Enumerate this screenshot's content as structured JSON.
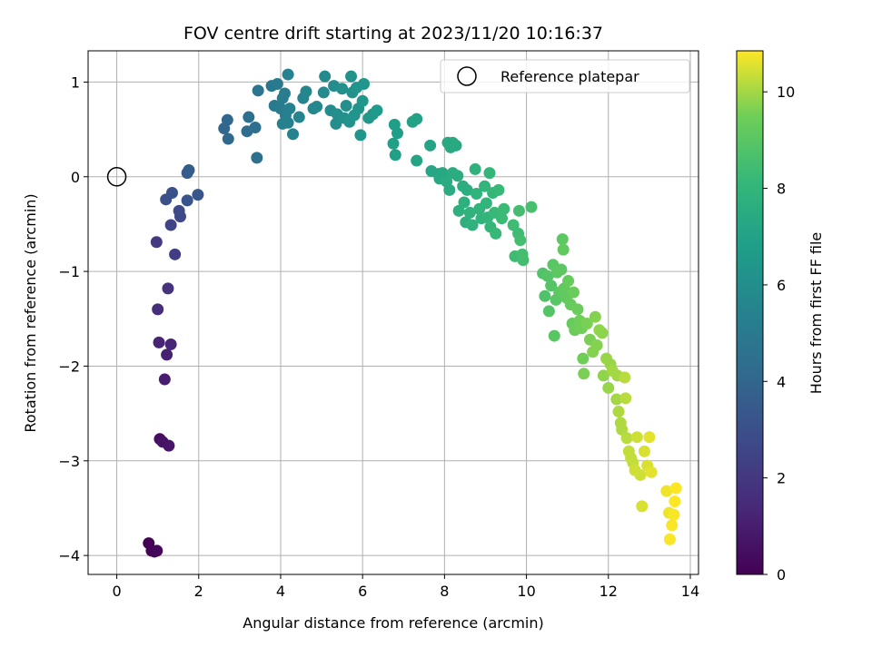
{
  "chart_data": {
    "type": "scatter",
    "title": "FOV centre drift starting at 2023/11/20 10:16:37",
    "xlabel": "Angular distance from reference (arcmin)",
    "ylabel": "Rotation from reference (arcmin)",
    "xlim": [
      -0.7,
      14.2
    ],
    "ylim": [
      -4.2,
      1.33
    ],
    "xticks": [
      0,
      2,
      4,
      6,
      8,
      10,
      12,
      14
    ],
    "yticks": [
      -4,
      -3,
      -2,
      -1,
      0,
      1
    ],
    "xtick_labels": [
      "0",
      "2",
      "4",
      "6",
      "8",
      "10",
      "12",
      "14"
    ],
    "ytick_labels": [
      "−4",
      "−3",
      "−2",
      "−1",
      "0",
      "1"
    ],
    "grid": true,
    "legend": {
      "position": "top-right",
      "entries": [
        "Reference platepar"
      ]
    },
    "reference_point": {
      "x": 0,
      "y": 0,
      "marker": "open-circle"
    },
    "colorbar": {
      "label": "Hours from first FF file",
      "range": [
        0,
        10.85
      ],
      "ticks": [
        0,
        2,
        4,
        6,
        8,
        10
      ],
      "tick_labels": [
        "0",
        "2",
        "4",
        "6",
        "8",
        "10"
      ],
      "colormap": "viridis"
    },
    "points": [
      {
        "x": 0.78,
        "y": -3.87,
        "t": 0.05
      },
      {
        "x": 0.85,
        "y": -3.95,
        "t": 0.1
      },
      {
        "x": 0.92,
        "y": -3.96,
        "t": 0.15
      },
      {
        "x": 0.98,
        "y": -3.95,
        "t": 0.2
      },
      {
        "x": 1.05,
        "y": -2.77,
        "t": 0.5
      },
      {
        "x": 1.12,
        "y": -2.8,
        "t": 0.6
      },
      {
        "x": 1.27,
        "y": -2.84,
        "t": 0.7
      },
      {
        "x": 1.17,
        "y": -2.14,
        "t": 1.0
      },
      {
        "x": 1.22,
        "y": -1.88,
        "t": 1.1
      },
      {
        "x": 1.03,
        "y": -1.75,
        "t": 1.2
      },
      {
        "x": 1.32,
        "y": -1.77,
        "t": 1.3
      },
      {
        "x": 1.0,
        "y": -1.4,
        "t": 1.6
      },
      {
        "x": 1.25,
        "y": -1.18,
        "t": 1.8
      },
      {
        "x": 0.97,
        "y": -0.69,
        "t": 2.1
      },
      {
        "x": 1.42,
        "y": -0.82,
        "t": 2.2
      },
      {
        "x": 1.32,
        "y": -0.51,
        "t": 2.5
      },
      {
        "x": 1.55,
        "y": -0.42,
        "t": 2.7
      },
      {
        "x": 1.52,
        "y": -0.36,
        "t": 2.8
      },
      {
        "x": 1.2,
        "y": -0.24,
        "t": 3.0
      },
      {
        "x": 1.35,
        "y": -0.17,
        "t": 3.1
      },
      {
        "x": 1.72,
        "y": -0.25,
        "t": 3.2
      },
      {
        "x": 1.98,
        "y": -0.19,
        "t": 3.3
      },
      {
        "x": 1.72,
        "y": 0.04,
        "t": 3.5
      },
      {
        "x": 1.76,
        "y": 0.07,
        "t": 3.6
      },
      {
        "x": 2.62,
        "y": 0.51,
        "t": 4.0
      },
      {
        "x": 2.7,
        "y": 0.6,
        "t": 4.1
      },
      {
        "x": 2.72,
        "y": 0.4,
        "t": 4.1
      },
      {
        "x": 3.18,
        "y": 0.48,
        "t": 4.3
      },
      {
        "x": 3.22,
        "y": 0.63,
        "t": 4.4
      },
      {
        "x": 3.38,
        "y": 0.52,
        "t": 4.4
      },
      {
        "x": 3.42,
        "y": 0.2,
        "t": 4.5
      },
      {
        "x": 3.45,
        "y": 0.91,
        "t": 4.8
      },
      {
        "x": 3.78,
        "y": 0.96,
        "t": 4.9
      },
      {
        "x": 3.92,
        "y": 0.98,
        "t": 5.0
      },
      {
        "x": 3.85,
        "y": 0.75,
        "t": 5.0
      },
      {
        "x": 4.0,
        "y": 0.72,
        "t": 5.1
      },
      {
        "x": 4.05,
        "y": 0.83,
        "t": 5.1
      },
      {
        "x": 4.1,
        "y": 0.88,
        "t": 5.2
      },
      {
        "x": 4.12,
        "y": 0.65,
        "t": 5.2
      },
      {
        "x": 4.05,
        "y": 0.56,
        "t": 5.3
      },
      {
        "x": 4.18,
        "y": 0.57,
        "t": 5.3
      },
      {
        "x": 4.22,
        "y": 0.72,
        "t": 5.3
      },
      {
        "x": 4.18,
        "y": 1.08,
        "t": 5.4
      },
      {
        "x": 4.3,
        "y": 0.45,
        "t": 5.4
      },
      {
        "x": 4.45,
        "y": 0.63,
        "t": 5.5
      },
      {
        "x": 4.55,
        "y": 0.83,
        "t": 5.5
      },
      {
        "x": 4.62,
        "y": 0.9,
        "t": 5.6
      },
      {
        "x": 4.8,
        "y": 0.72,
        "t": 5.6
      },
      {
        "x": 4.88,
        "y": 0.74,
        "t": 5.7
      },
      {
        "x": 5.05,
        "y": 0.89,
        "t": 5.8
      },
      {
        "x": 5.08,
        "y": 1.06,
        "t": 5.8
      },
      {
        "x": 5.22,
        "y": 0.7,
        "t": 5.9
      },
      {
        "x": 5.3,
        "y": 0.96,
        "t": 5.9
      },
      {
        "x": 5.35,
        "y": 0.56,
        "t": 6.0
      },
      {
        "x": 5.38,
        "y": 0.66,
        "t": 6.0
      },
      {
        "x": 5.5,
        "y": 0.93,
        "t": 6.1
      },
      {
        "x": 5.55,
        "y": 0.62,
        "t": 6.1
      },
      {
        "x": 5.6,
        "y": 0.75,
        "t": 6.1
      },
      {
        "x": 5.68,
        "y": 0.58,
        "t": 6.2
      },
      {
        "x": 5.72,
        "y": 1.06,
        "t": 6.2
      },
      {
        "x": 5.75,
        "y": 0.89,
        "t": 6.2
      },
      {
        "x": 5.8,
        "y": 0.65,
        "t": 6.3
      },
      {
        "x": 5.85,
        "y": 0.94,
        "t": 6.3
      },
      {
        "x": 5.9,
        "y": 0.72,
        "t": 6.3
      },
      {
        "x": 5.95,
        "y": 0.44,
        "t": 6.4
      },
      {
        "x": 6.0,
        "y": 0.8,
        "t": 6.4
      },
      {
        "x": 6.03,
        "y": 0.98,
        "t": 6.4
      },
      {
        "x": 6.15,
        "y": 0.62,
        "t": 6.5
      },
      {
        "x": 6.25,
        "y": 0.66,
        "t": 6.5
      },
      {
        "x": 6.35,
        "y": 0.7,
        "t": 6.6
      },
      {
        "x": 6.78,
        "y": 0.55,
        "t": 6.8
      },
      {
        "x": 6.85,
        "y": 0.46,
        "t": 6.8
      },
      {
        "x": 6.75,
        "y": 0.35,
        "t": 6.9
      },
      {
        "x": 6.8,
        "y": 0.23,
        "t": 6.9
      },
      {
        "x": 7.22,
        "y": 0.58,
        "t": 7.0
      },
      {
        "x": 7.32,
        "y": 0.61,
        "t": 7.0
      },
      {
        "x": 7.32,
        "y": 0.17,
        "t": 7.1
      },
      {
        "x": 7.65,
        "y": 0.33,
        "t": 7.1
      },
      {
        "x": 7.68,
        "y": 0.06,
        "t": 7.2
      },
      {
        "x": 7.85,
        "y": 0.03,
        "t": 7.2
      },
      {
        "x": 7.95,
        "y": 0.04,
        "t": 7.3
      },
      {
        "x": 7.88,
        "y": -0.02,
        "t": 7.3
      },
      {
        "x": 8.08,
        "y": 0.36,
        "t": 7.3
      },
      {
        "x": 8.15,
        "y": 0.31,
        "t": 7.4
      },
      {
        "x": 8.2,
        "y": 0.36,
        "t": 7.4
      },
      {
        "x": 8.28,
        "y": 0.33,
        "t": 7.4
      },
      {
        "x": 8.05,
        "y": -0.05,
        "t": 7.5
      },
      {
        "x": 8.12,
        "y": -0.14,
        "t": 7.5
      },
      {
        "x": 8.2,
        "y": 0.04,
        "t": 7.5
      },
      {
        "x": 8.32,
        "y": 0.01,
        "t": 7.6
      },
      {
        "x": 8.45,
        "y": -0.1,
        "t": 7.6
      },
      {
        "x": 8.55,
        "y": -0.14,
        "t": 7.6
      },
      {
        "x": 8.35,
        "y": -0.36,
        "t": 7.7
      },
      {
        "x": 8.48,
        "y": -0.27,
        "t": 7.7
      },
      {
        "x": 8.52,
        "y": -0.48,
        "t": 7.7
      },
      {
        "x": 8.62,
        "y": -0.38,
        "t": 7.8
      },
      {
        "x": 8.68,
        "y": -0.51,
        "t": 7.8
      },
      {
        "x": 8.75,
        "y": 0.08,
        "t": 7.8
      },
      {
        "x": 8.78,
        "y": -0.18,
        "t": 7.9
      },
      {
        "x": 8.85,
        "y": -0.34,
        "t": 7.9
      },
      {
        "x": 8.9,
        "y": -0.44,
        "t": 7.9
      },
      {
        "x": 8.98,
        "y": -0.1,
        "t": 8.0
      },
      {
        "x": 9.02,
        "y": -0.28,
        "t": 8.0
      },
      {
        "x": 9.05,
        "y": -0.43,
        "t": 8.0
      },
      {
        "x": 9.1,
        "y": 0.04,
        "t": 8.1
      },
      {
        "x": 9.12,
        "y": -0.53,
        "t": 8.1
      },
      {
        "x": 9.18,
        "y": -0.17,
        "t": 8.1
      },
      {
        "x": 9.22,
        "y": -0.38,
        "t": 8.2
      },
      {
        "x": 9.25,
        "y": -0.6,
        "t": 8.2
      },
      {
        "x": 9.32,
        "y": -0.14,
        "t": 8.2
      },
      {
        "x": 9.4,
        "y": -0.44,
        "t": 8.3
      },
      {
        "x": 9.45,
        "y": -0.34,
        "t": 8.3
      },
      {
        "x": 9.68,
        "y": -0.51,
        "t": 8.4
      },
      {
        "x": 9.72,
        "y": -0.84,
        "t": 8.4
      },
      {
        "x": 9.8,
        "y": -0.6,
        "t": 8.4
      },
      {
        "x": 9.85,
        "y": -0.67,
        "t": 8.5
      },
      {
        "x": 9.9,
        "y": -0.82,
        "t": 8.5
      },
      {
        "x": 9.92,
        "y": -0.88,
        "t": 8.5
      },
      {
        "x": 9.82,
        "y": -0.36,
        "t": 8.5
      },
      {
        "x": 10.12,
        "y": -0.32,
        "t": 8.6
      },
      {
        "x": 10.4,
        "y": -1.02,
        "t": 8.8
      },
      {
        "x": 10.45,
        "y": -1.26,
        "t": 8.8
      },
      {
        "x": 10.52,
        "y": -1.05,
        "t": 8.9
      },
      {
        "x": 10.55,
        "y": -1.42,
        "t": 8.9
      },
      {
        "x": 10.6,
        "y": -1.15,
        "t": 8.9
      },
      {
        "x": 10.65,
        "y": -0.93,
        "t": 9.0
      },
      {
        "x": 10.68,
        "y": -1.68,
        "t": 9.0
      },
      {
        "x": 10.72,
        "y": -1.3,
        "t": 9.0
      },
      {
        "x": 10.75,
        "y": -1.01,
        "t": 9.1
      },
      {
        "x": 10.8,
        "y": -1.22,
        "t": 9.1
      },
      {
        "x": 10.85,
        "y": -0.98,
        "t": 9.1
      },
      {
        "x": 10.88,
        "y": -0.66,
        "t": 9.1
      },
      {
        "x": 10.9,
        "y": -0.77,
        "t": 9.2
      },
      {
        "x": 10.92,
        "y": -1.18,
        "t": 9.2
      },
      {
        "x": 10.98,
        "y": -1.28,
        "t": 9.2
      },
      {
        "x": 11.02,
        "y": -1.1,
        "t": 9.3
      },
      {
        "x": 11.08,
        "y": -1.35,
        "t": 9.3
      },
      {
        "x": 11.12,
        "y": -1.55,
        "t": 9.3
      },
      {
        "x": 11.15,
        "y": -1.22,
        "t": 9.4
      },
      {
        "x": 11.18,
        "y": -1.62,
        "t": 9.4
      },
      {
        "x": 11.25,
        "y": -1.4,
        "t": 9.4
      },
      {
        "x": 11.3,
        "y": -1.52,
        "t": 9.5
      },
      {
        "x": 11.35,
        "y": -1.6,
        "t": 9.5
      },
      {
        "x": 11.38,
        "y": -1.92,
        "t": 9.5
      },
      {
        "x": 11.4,
        "y": -2.08,
        "t": 9.6
      },
      {
        "x": 11.48,
        "y": -1.55,
        "t": 9.6
      },
      {
        "x": 11.55,
        "y": -1.72,
        "t": 9.6
      },
      {
        "x": 11.62,
        "y": -1.85,
        "t": 9.7
      },
      {
        "x": 11.68,
        "y": -1.48,
        "t": 9.7
      },
      {
        "x": 11.72,
        "y": -1.78,
        "t": 9.7
      },
      {
        "x": 11.78,
        "y": -1.62,
        "t": 9.8
      },
      {
        "x": 11.85,
        "y": -1.65,
        "t": 9.8
      },
      {
        "x": 11.88,
        "y": -2.1,
        "t": 9.8
      },
      {
        "x": 11.95,
        "y": -1.92,
        "t": 9.9
      },
      {
        "x": 12.0,
        "y": -2.23,
        "t": 9.9
      },
      {
        "x": 12.05,
        "y": -1.98,
        "t": 9.9
      },
      {
        "x": 12.1,
        "y": -2.05,
        "t": 10.0
      },
      {
        "x": 12.2,
        "y": -2.35,
        "t": 10.0
      },
      {
        "x": 12.22,
        "y": -2.1,
        "t": 10.0
      },
      {
        "x": 12.25,
        "y": -2.48,
        "t": 10.1
      },
      {
        "x": 12.3,
        "y": -2.6,
        "t": 10.1
      },
      {
        "x": 12.33,
        "y": -2.67,
        "t": 10.1
      },
      {
        "x": 12.4,
        "y": -2.12,
        "t": 10.2
      },
      {
        "x": 12.42,
        "y": -2.34,
        "t": 10.2
      },
      {
        "x": 12.45,
        "y": -2.76,
        "t": 10.2
      },
      {
        "x": 12.5,
        "y": -2.9,
        "t": 10.3
      },
      {
        "x": 12.55,
        "y": -2.97,
        "t": 10.3
      },
      {
        "x": 12.6,
        "y": -3.02,
        "t": 10.3
      },
      {
        "x": 12.65,
        "y": -3.1,
        "t": 10.4
      },
      {
        "x": 12.7,
        "y": -2.75,
        "t": 10.4
      },
      {
        "x": 12.78,
        "y": -3.15,
        "t": 10.4
      },
      {
        "x": 12.82,
        "y": -3.48,
        "t": 10.5
      },
      {
        "x": 12.88,
        "y": -2.9,
        "t": 10.5
      },
      {
        "x": 12.95,
        "y": -3.05,
        "t": 10.5
      },
      {
        "x": 13.0,
        "y": -2.75,
        "t": 10.6
      },
      {
        "x": 13.05,
        "y": -3.12,
        "t": 10.6
      },
      {
        "x": 13.42,
        "y": -3.32,
        "t": 10.7
      },
      {
        "x": 13.48,
        "y": -3.55,
        "t": 10.7
      },
      {
        "x": 13.5,
        "y": -3.83,
        "t": 10.8
      },
      {
        "x": 13.55,
        "y": -3.68,
        "t": 10.8
      },
      {
        "x": 13.6,
        "y": -3.57,
        "t": 10.8
      },
      {
        "x": 13.62,
        "y": -3.43,
        "t": 10.85
      },
      {
        "x": 13.65,
        "y": -3.29,
        "t": 10.85
      }
    ]
  }
}
